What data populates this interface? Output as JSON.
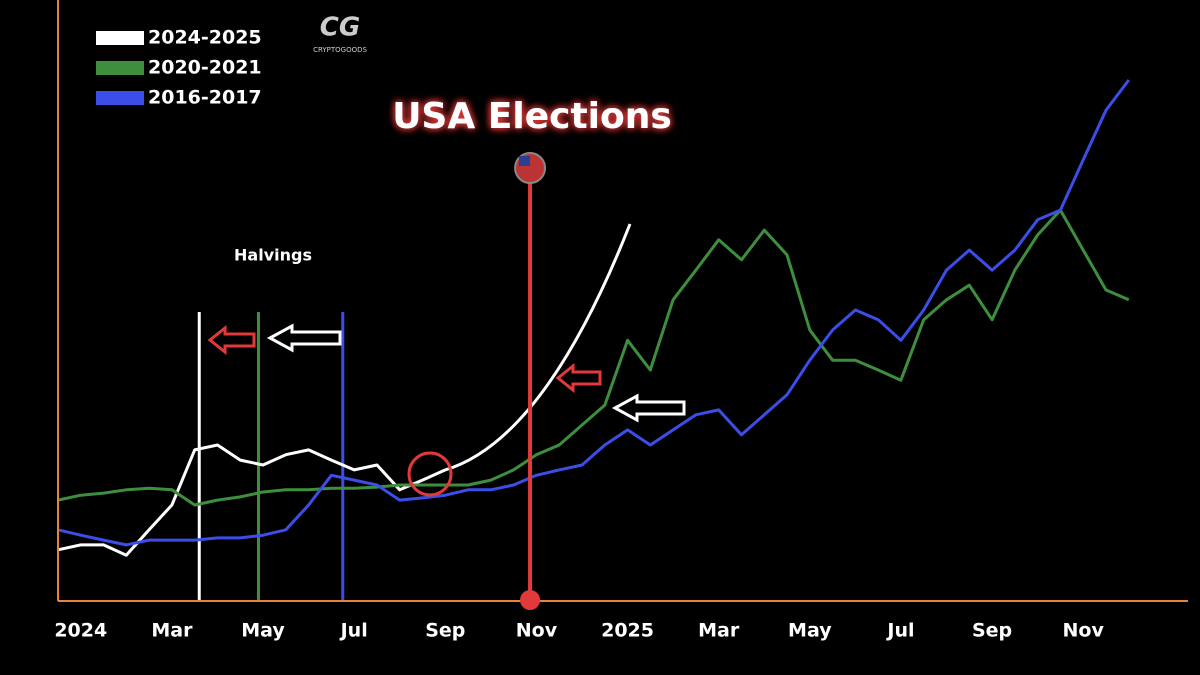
{
  "chart_data": {
    "type": "line",
    "title": "USA Elections",
    "logo": "CG",
    "logo_subtitle": "CRYPTOGOODS",
    "xlim": [
      -0.5,
      24.3
    ],
    "ylim": [
      0,
      100
    ],
    "xticks": [
      {
        "value": 0,
        "label": "2024"
      },
      {
        "value": 2,
        "label": "Mar"
      },
      {
        "value": 4,
        "label": "May"
      },
      {
        "value": 6,
        "label": "Jul"
      },
      {
        "value": 8,
        "label": "Sep"
      },
      {
        "value": 10,
        "label": "Nov"
      },
      {
        "value": 12,
        "label": "2025"
      },
      {
        "value": 14,
        "label": "Mar"
      },
      {
        "value": 16,
        "label": "May"
      },
      {
        "value": 18,
        "label": "Jul"
      },
      {
        "value": 20,
        "label": "Sep"
      },
      {
        "value": 22,
        "label": "Nov"
      }
    ],
    "x": [
      -0.5,
      0,
      0.5,
      1,
      1.5,
      2,
      2.5,
      3,
      3.5,
      4,
      4.5,
      5,
      5.5,
      6,
      6.5,
      7,
      7.5,
      8,
      8.5,
      9,
      9.5,
      10,
      10.5,
      11,
      11.5,
      12,
      12.5,
      13,
      13.5,
      14,
      14.5,
      15,
      15.5,
      16,
      16.5,
      17,
      17.5,
      18,
      18.5,
      19,
      19.5,
      20,
      20.5,
      21,
      21.5,
      22,
      22.5,
      23
    ],
    "series": [
      {
        "name": "2024-2025",
        "color": "#ffffff",
        "values": [
          9.3,
          10.2,
          10.2,
          8.3,
          13,
          17.6,
          27.8,
          28.7,
          25.9,
          25,
          26.9,
          27.8,
          25.9,
          24.1,
          25,
          20.4,
          22.2,
          24.1,
          null,
          null,
          null,
          null,
          null,
          null,
          null,
          null,
          null,
          null,
          null,
          null,
          null,
          null,
          null,
          null,
          null,
          null,
          null,
          null,
          null,
          null,
          null,
          null,
          null,
          null,
          null,
          null,
          null,
          null
        ]
      },
      {
        "name": "2020-2021",
        "color": "#3d8f3d",
        "values": [
          18.5,
          19.4,
          19.8,
          20.4,
          20.7,
          20.4,
          17.6,
          18.5,
          19.1,
          20,
          20.4,
          20.4,
          20.7,
          20.7,
          20.9,
          21.3,
          21.3,
          21.3,
          21.3,
          22.2,
          24.1,
          26.9,
          28.7,
          32.4,
          36.1,
          48.1,
          42.6,
          55.6,
          61.1,
          66.7,
          63,
          68.5,
          63.9,
          50,
          44.4,
          44.4,
          42.6,
          40.7,
          51.9,
          55.6,
          58.3,
          51.9,
          61.1,
          67.6,
          72.2,
          64.8,
          57.4,
          55.6
        ]
      },
      {
        "name": "2016-2017",
        "color": "#3b4ee8",
        "values": [
          13,
          12,
          11.1,
          10.2,
          11.1,
          11.1,
          11.1,
          11.5,
          11.5,
          12,
          13,
          17.6,
          23.1,
          22.2,
          21.3,
          18.5,
          18.9,
          19.4,
          20.4,
          20.4,
          21.3,
          23.1,
          24.1,
          25,
          28.7,
          31.5,
          28.7,
          31.5,
          34.3,
          35.2,
          30.6,
          34.3,
          38,
          44.4,
          50,
          53.7,
          51.9,
          48.1,
          53.7,
          61.1,
          64.8,
          61.1,
          64.8,
          70.4,
          72.2,
          81.5,
          90.7,
          96.3
        ]
      }
    ],
    "halvings_label": "Halvings",
    "halvings": [
      {
        "x": 2.6,
        "color": "#ffffff"
      },
      {
        "x": 3.9,
        "color": "#3d8f3d"
      },
      {
        "x": 5.75,
        "color": "#3b4ee8"
      }
    ],
    "election_x": 9.86,
    "election_color": "#e23a3a"
  }
}
